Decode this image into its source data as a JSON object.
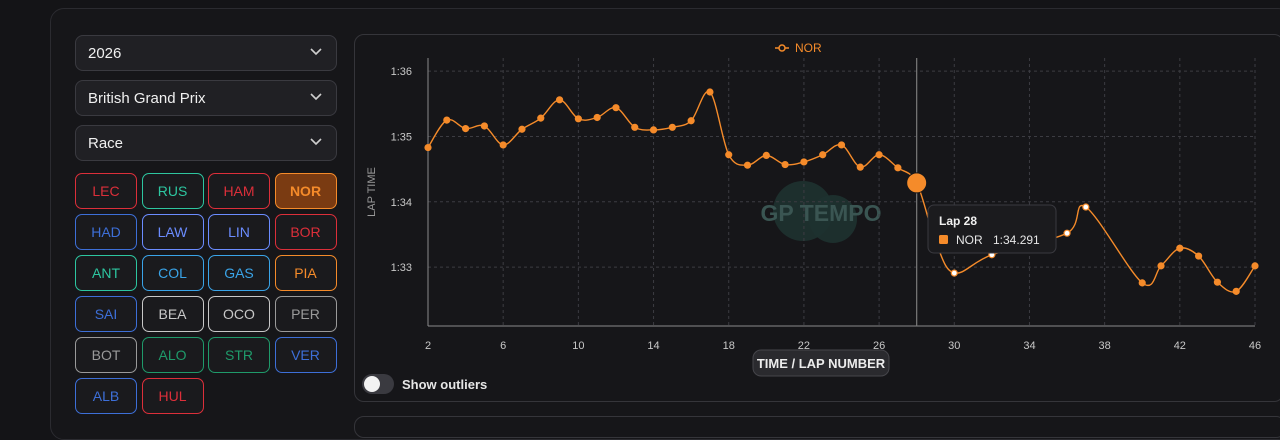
{
  "filters": {
    "season": "2026",
    "event": "British Grand Prix",
    "session": "Race"
  },
  "drivers": [
    {
      "code": "LEC",
      "color": "#dc2f3a",
      "active": false
    },
    {
      "code": "RUS",
      "color": "#2dc6a0",
      "active": false
    },
    {
      "code": "HAM",
      "color": "#dc2f3a",
      "active": false
    },
    {
      "code": "NOR",
      "color": "#f58b2a",
      "active": true
    },
    {
      "code": "HAD",
      "color": "#3d6fd8",
      "active": false
    },
    {
      "code": "LAW",
      "color": "#6b8cff",
      "active": false
    },
    {
      "code": "LIN",
      "color": "#6b8cff",
      "active": false
    },
    {
      "code": "BOR",
      "color": "#dc2f3a",
      "active": false
    },
    {
      "code": "ANT",
      "color": "#2dc6a0",
      "active": false
    },
    {
      "code": "COL",
      "color": "#3aa4e8",
      "active": false
    },
    {
      "code": "GAS",
      "color": "#3aa4e8",
      "active": false
    },
    {
      "code": "PIA",
      "color": "#f58b2a",
      "active": false
    },
    {
      "code": "SAI",
      "color": "#3d6fd8",
      "active": false
    },
    {
      "code": "BEA",
      "color": "#c8c8c8",
      "active": false
    },
    {
      "code": "OCO",
      "color": "#c8c8c8",
      "active": false
    },
    {
      "code": "PER",
      "color": "#9a9a9a",
      "active": false
    },
    {
      "code": "BOT",
      "color": "#9a9a9a",
      "active": false
    },
    {
      "code": "ALO",
      "color": "#1f9a6a",
      "active": false
    },
    {
      "code": "STR",
      "color": "#1f9a6a",
      "active": false
    },
    {
      "code": "VER",
      "color": "#3d6fd8",
      "active": false
    },
    {
      "code": "ALB",
      "color": "#3d6fd8",
      "active": false
    },
    {
      "code": "HUL",
      "color": "#dc2f3a",
      "active": false
    }
  ],
  "chart": {
    "watermark": "GP TEMPO",
    "toggle_label": "Show outliers"
  },
  "chart_data": {
    "type": "line",
    "title": "",
    "legend": {
      "label": "NOR",
      "position": "top-center"
    },
    "xlabel": "TIME / LAP NUMBER",
    "ylabel": "LAP TIME",
    "xlim": [
      2,
      46
    ],
    "ylim": [
      92.1,
      96.2
    ],
    "x_ticks": [
      2,
      6,
      10,
      14,
      18,
      22,
      26,
      30,
      34,
      38,
      42,
      46
    ],
    "y_ticks": [
      {
        "value": 93,
        "label": "1:33"
      },
      {
        "value": 94,
        "label": "1:34"
      },
      {
        "value": 95,
        "label": "1:35"
      },
      {
        "value": 96,
        "label": "1:36"
      }
    ],
    "grid": true,
    "series": [
      {
        "name": "NOR",
        "color": "#f58b2a",
        "x": [
          2,
          3,
          4,
          5,
          6,
          7,
          8,
          9,
          10,
          11,
          12,
          13,
          14,
          15,
          16,
          17,
          18,
          19,
          20,
          21,
          22,
          23,
          24,
          25,
          26,
          27,
          28,
          29,
          30,
          32,
          36,
          37,
          40,
          41,
          42,
          43,
          44,
          45,
          46
        ],
        "y": [
          94.83,
          95.25,
          95.12,
          95.16,
          94.87,
          95.11,
          95.28,
          95.56,
          95.27,
          95.29,
          95.44,
          95.14,
          95.1,
          95.14,
          95.24,
          95.68,
          94.72,
          94.56,
          94.71,
          94.57,
          94.61,
          94.72,
          94.87,
          94.53,
          94.72,
          94.52,
          94.29,
          93.4,
          92.91,
          93.19,
          93.52,
          93.92,
          92.76,
          93.02,
          93.29,
          93.17,
          92.77,
          92.63,
          93.02
        ],
        "outliers_x": [
          30,
          32,
          36,
          37
        ]
      }
    ],
    "hover": {
      "title": "Lap 28",
      "driver": "NOR",
      "value_text": "1:34.291",
      "x": 28,
      "y": 94.29
    }
  }
}
